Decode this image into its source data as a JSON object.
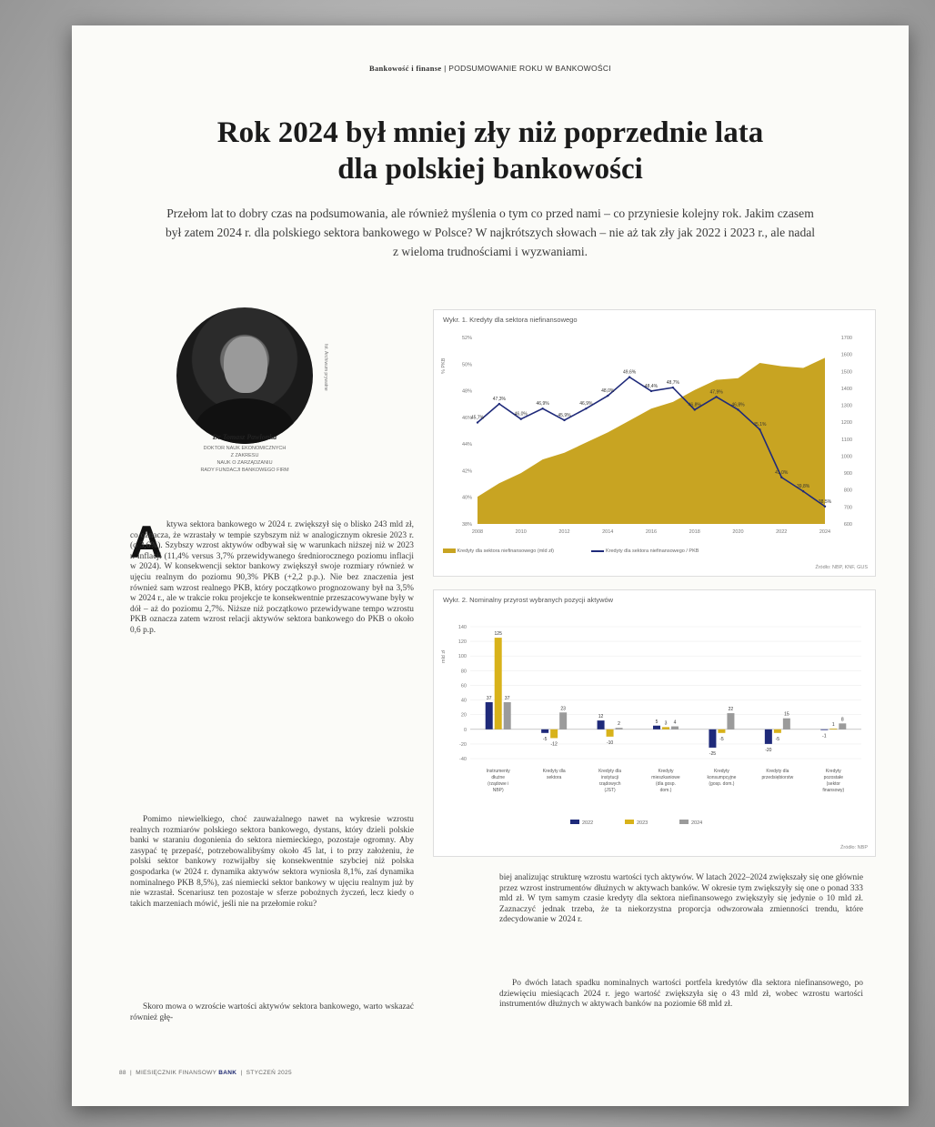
{
  "header": {
    "section": "Bankowość i finanse",
    "separator": "|",
    "topic": "PODSUMOWANIE ROKU W BANKOWOŚCI"
  },
  "article": {
    "title_line1": "Rok 2024 był mniej zły niż poprzednie lata",
    "title_line2": "dla polskiej bankowości",
    "lead": "Przełom lat to dobry czas na podsumowania, ale również myślenia o tym co przed nami – co przyniesie kolejny rok. Jakim czasem był zatem 2024 r. dla polskiego sektora bankowego w Polsce? W najkrótszych słowach – nie aż tak zły jak 2022 i 2023 r., ale nadal z wieloma trudnościami i wyzwaniami.",
    "dropcap": "A",
    "col1_first": "ktywa sektora bankowego w 2024 r. zwiększył się o blisko 243 mld zł, co oznacza, że wzrastały w tempie szybszym niż w analogicznym okresie 2023 r. (o 3,6%). Szybszy wzrost aktywów odbywał się w warunkach niższej niż w 2023 r. inflacji (11,4% versus 3,7% przewidywanego średniorocznego poziomu inflacji w 2024). W konsekwencji sektor bankowy zwiększył swoje rozmiary również w ujęciu realnym do poziomu 90,3% PKB (+2,2 p.p.). Nie bez znaczenia jest również sam wzrost realnego PKB, który początkowo prognozowany był na 3,5% w 2024 r., ale w trakcie roku projekcje te konsekwentnie przeszacowywane były w dół – aż do poziomu 2,7%. Niższe niż początkowo przewidywane tempo wzrostu PKB oznacza zatem wzrost relacji aktywów sektora bankowego do PKB o około 0,6 p.p.",
    "col1_second": "Pomimo niewielkiego, choć zauważalnego nawet na wykresie wzrostu realnych rozmiarów polskiego sektora bankowego, dystans, który dzieli polskie banki w staraniu dogonienia do sektora niemieckiego, pozostaje ogromny. Aby zasypać tę przepaść, potrzebowalibyśmy około 45 lat, i to przy założeniu, że polski sektor bankowy rozwijałby się konsekwentnie szybciej niż polska gospodarka (w 2024 r. dynamika aktywów sektora wyniosła 8,1%, zaś dynamika nominalnego PKB 8,5%), zaś niemiecki sektor bankowy w ujęciu realnym już by nie wzrastał. Scenariusz ten pozostaje w sferze pobożnych życzeń, lecz kiedy o takich marzeniach mówić, jeśli nie na przełomie roku?",
    "col1_third": "Skoro mowa o wzroście wartości aktywów sektora bankowego, warto wskazać również głę-",
    "col2_first": "biej analizując strukturę wzrostu wartości tych aktywów. W latach 2022–2024 zwiększały się one głównie przez wzrost instrumentów dłużnych w aktywach banków. W okresie tym zwiększyły się one o ponad 333 mld zł. W tym samym czasie kredyty dla sektora niefinansowego zwiększyły się jedynie o 10 mld zł. Zaznaczyć jednak trzeba, że ta niekorzystna proporcja odwzorowała zmienności trendu, które zdecydowanie w 2024 r.",
    "col2_second": "Po dwóch latach spadku nominalnych wartości portfela kredytów dla sektora niefinansowego, po dziewięciu miesiącach 2024 r. jego wartość zwiększyła się o 43 mld zł, wobec wzrostu wartości instrumentów dłużnych w aktywach banków na poziomie 68 mld zł."
  },
  "author": {
    "name": "Dr Tomasz Pawlonka",
    "role_lines": [
      "DOKTOR NAUK EKONOMICZNYCH",
      "Z ZAKRESU",
      "NAUK O ZARZĄDZANIU",
      "RADY FUNDACJI BANKOWEGO FIRM"
    ],
    "photo_credit": "fot. Archiwum prywatne"
  },
  "chart1": {
    "title": "Wykr. 1. Kredyty dla sektora niefinansowego",
    "left_axis_label": "% PKB",
    "legend_area": "Kredyty dla sektora niefinansowego (mld zł)",
    "legend_line": "Kredyty dla sektora niefinansowego / PKB",
    "source": "Źródło: NBP, KNF, GUS",
    "chart_data": {
      "type": "area",
      "x": [
        "2008",
        "2009",
        "2010",
        "2011",
        "2012",
        "2013",
        "2014",
        "2015",
        "2016",
        "2017",
        "2018",
        "2019",
        "2020",
        "2021",
        "2022",
        "2023",
        "2024"
      ],
      "x_tick_labels": [
        "2008",
        "2010",
        "2012",
        "2014",
        "2016",
        "2018",
        "2020",
        "2022",
        "2024"
      ],
      "y_left_ticks": [
        "38%",
        "40%",
        "42%",
        "44%",
        "46%",
        "48%",
        "50%",
        "52%"
      ],
      "y_right_ticks": [
        "600",
        "700",
        "800",
        "900",
        "1000",
        "1100",
        "1200",
        "1300",
        "1400",
        "1500",
        "1600",
        "1700"
      ],
      "series": [
        {
          "name": "Kredyty dla sektora niefinansowego (mld zł)",
          "axis": "right",
          "values": [
            760,
            840,
            900,
            980,
            1020,
            1080,
            1140,
            1210,
            1280,
            1320,
            1390,
            1450,
            1460,
            1550,
            1530,
            1520,
            1580
          ]
        },
        {
          "name": "Kredyty dla sektora niefinansowego / PKB",
          "axis": "left",
          "values": [
            45.7,
            47.3,
            46.0,
            46.9,
            45.9,
            46.9,
            48.0,
            49.6,
            48.4,
            48.7,
            46.8,
            47.9,
            46.8,
            45.1,
            41.0,
            39.8,
            38.5
          ]
        }
      ],
      "data_labels": [
        "45,7%",
        "47,3%",
        "46,0%",
        "46,9%",
        "45,9%",
        "46,9%",
        "48,0%",
        "49,6%",
        "48,4%",
        "48,7%",
        "46,8%",
        "47,9%",
        "46,8%",
        "45,1%",
        "41,0%",
        "39,8%",
        "38,5%"
      ]
    }
  },
  "chart2": {
    "title": "Wykr. 2. Nominalny przyrost wybranych pozycji aktywów",
    "left_axis_label": "mld zł",
    "source": "Źródło: NBP",
    "chart_data": {
      "type": "bar",
      "categories": [
        "Instrumenty dłużne (rządowe i NBP)",
        "Kredyty dla sektora",
        "Kredyty dla instytucji rządowych (JST)",
        "Kredyty mieszkaniowe (dla gosp. dom.)",
        "Kredyty konsumpcyjne (gosp. dom.)",
        "Kredyty dla przedsiębiorstw",
        "Kredyty pozostałe (sektor finansowy)"
      ],
      "y_ticks": [
        "-40",
        "-20",
        "0",
        "20",
        "40",
        "60",
        "80",
        "100",
        "120",
        "140"
      ],
      "ylim": [
        -40,
        140
      ],
      "series": [
        {
          "name": "2022",
          "color": "#1f2a7a",
          "values": [
            37,
            -5,
            12,
            5,
            -25,
            -20,
            -1
          ]
        },
        {
          "name": "2023",
          "color": "#d8b21a",
          "values": [
            125,
            -12,
            -10,
            3,
            -5,
            -5,
            1
          ]
        },
        {
          "name": "2024",
          "color": "#9b9b9b",
          "values": [
            37,
            23,
            2,
            4,
            22,
            15,
            8
          ]
        }
      ],
      "data_labels": [
        "37",
        "125",
        "37",
        "-5",
        "-12",
        "23",
        "12",
        "-10",
        "2",
        "5",
        "3",
        "4",
        "-25",
        "-5",
        "22",
        "-20",
        "-5",
        "15",
        "-1",
        "1",
        "8"
      ]
    }
  },
  "footer": {
    "page": "88",
    "mag_pre": "MIESIĘCZNIK FINANSOWY",
    "mag": "BANK",
    "date": "STYCZEŃ 2025"
  },
  "colors": {
    "gold": "#c8a422",
    "navy": "#1f2a7a",
    "grey": "#9b9b9b"
  }
}
